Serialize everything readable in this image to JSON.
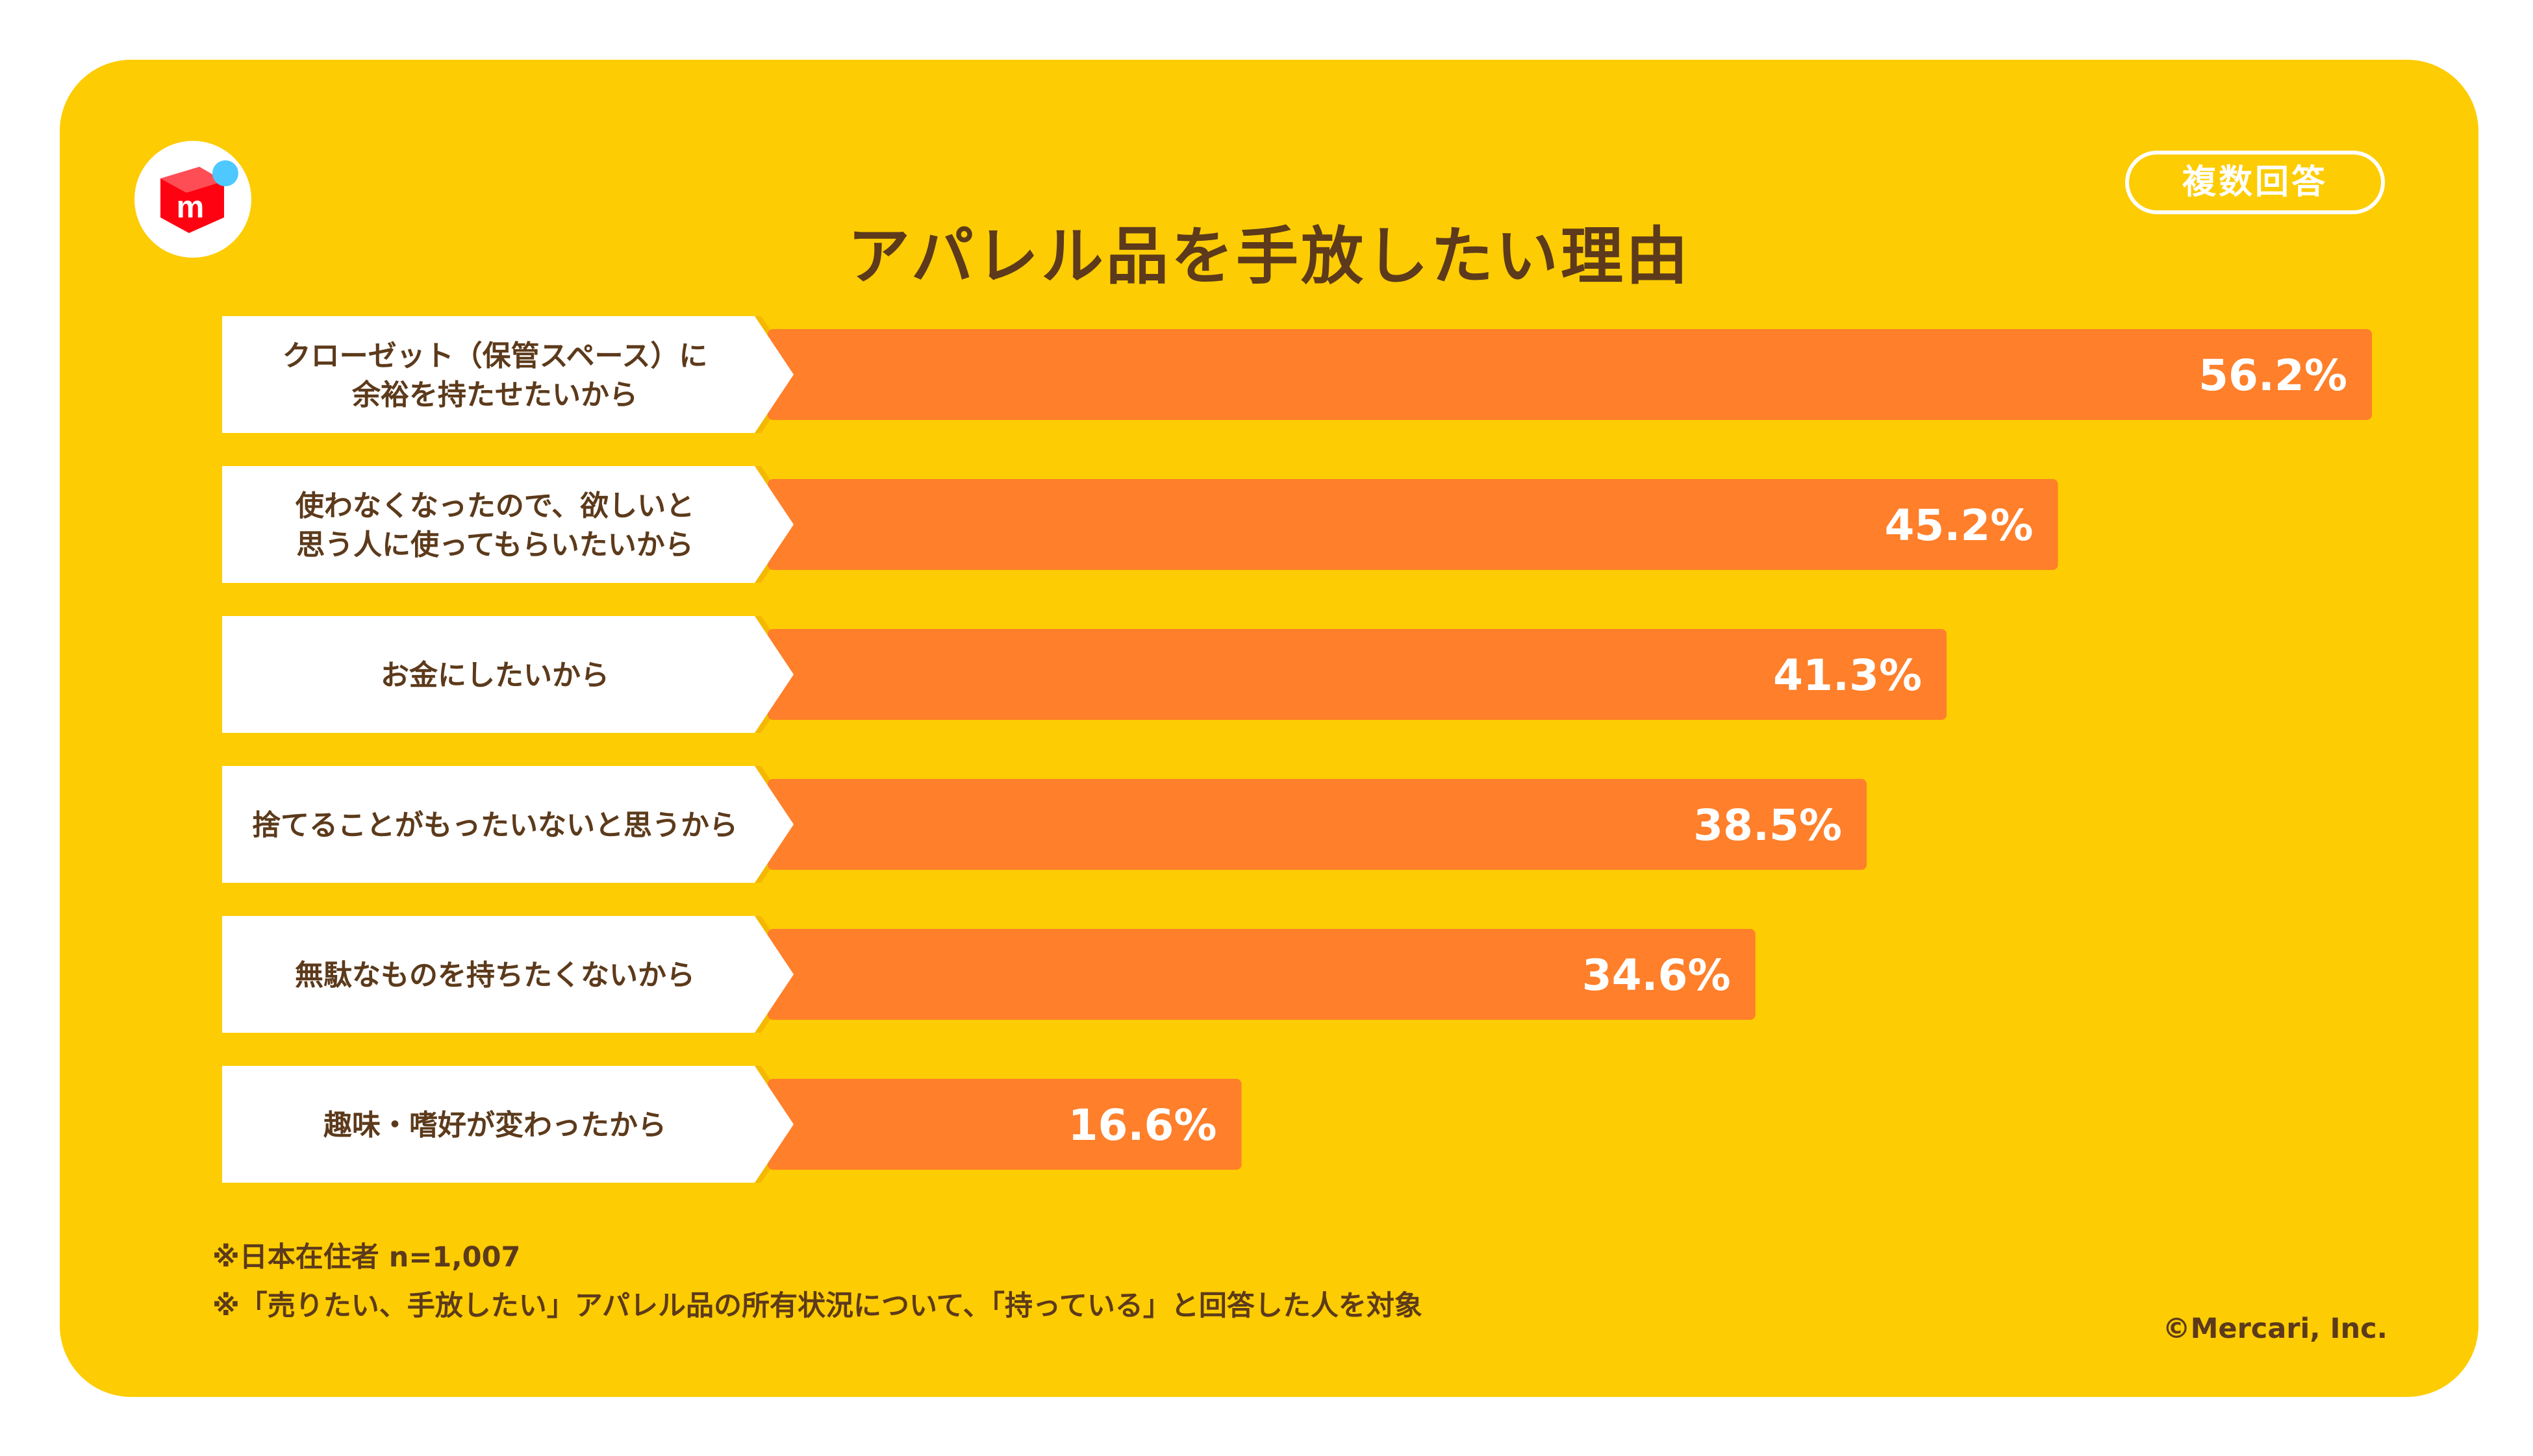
{
  "title": "アパレル品を手放したい理由",
  "badge": "複数回答",
  "logo": {
    "icon": "mercari-box-icon",
    "letter": "m"
  },
  "colors": {
    "background": "#FDCC02",
    "bar": "#FF7F2A",
    "bar_shadow": "#F5B800",
    "label_box": "#FFFFFF",
    "text_dark": "#5C3A1B",
    "logo_red": "#FF0211",
    "logo_dot": "#4DC9FF"
  },
  "chart_data": {
    "type": "bar",
    "orientation": "horizontal",
    "categories": [
      [
        "クローゼット（保管スペース）に",
        "余裕を持たせたいから"
      ],
      [
        "使わなくなったので、欲しいと",
        "思う人に使ってもらいたいから"
      ],
      [
        "お金にしたいから"
      ],
      [
        "捨てることがもったいないと思うから"
      ],
      [
        "無駄なものを持ちたくないから"
      ],
      [
        "趣味・嗜好が変わったから"
      ]
    ],
    "values": [
      56.2,
      45.2,
      41.3,
      38.5,
      34.6,
      16.6
    ],
    "value_labels": [
      "56.2%",
      "45.2%",
      "41.3%",
      "38.5%",
      "34.6%",
      "16.6%"
    ],
    "unit": "%",
    "xlim": [
      0,
      56.2
    ],
    "grid": false,
    "legend": "none"
  },
  "notes": [
    "※日本在住者 n=1,007",
    "※「売りたい、手放したい」アパレル品の所有状況について、「持っている」と回答した人を対象"
  ],
  "copyright": "©Mercari, Inc."
}
